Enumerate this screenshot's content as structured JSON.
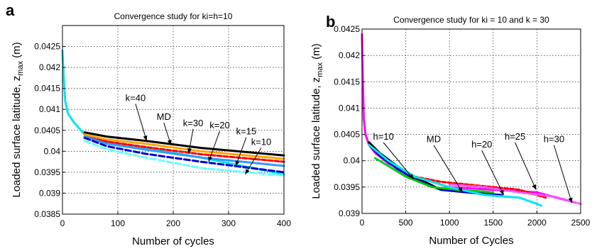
{
  "chart_data": [
    {
      "panel": "a",
      "type": "line",
      "title": "Convergence study for ki=h=10",
      "xlabel": "Number of cycles",
      "ylabel": "Loaded surface latitude, z",
      "ylabel_sub": "max",
      "ylabel_unit": " (m)",
      "xlim": [
        0,
        400
      ],
      "ylim": [
        0.0385,
        0.043
      ],
      "xticks": [
        0,
        100,
        200,
        300,
        400
      ],
      "yticks": [
        0.0385,
        0.039,
        0.0395,
        0.04,
        0.0405,
        0.041,
        0.0415,
        0.042,
        0.0425
      ],
      "ytick_labels": [
        "0.0385",
        "0.039",
        "0.0395",
        "0.04",
        "0.0405",
        "0.041",
        "0.0415",
        "0.042",
        "0.0425"
      ],
      "grid": true,
      "series": [
        {
          "color": "#00e5ee",
          "dash": "",
          "x": [
            0,
            2,
            5,
            10,
            20,
            40,
            80,
            150,
            250,
            400
          ],
          "y": [
            0.0424,
            0.0418,
            0.0412,
            0.0409,
            0.0407,
            0.0404,
            0.04023,
            0.04008,
            0.03985,
            0.03945
          ]
        },
        {
          "color": "#000000",
          "dash": "",
          "x": [
            40,
            80,
            150,
            250,
            400
          ],
          "y": [
            0.04045,
            0.04035,
            0.04025,
            0.04008,
            0.0399
          ]
        },
        {
          "color": "#ffa500",
          "dash": "",
          "x": [
            40,
            80,
            150,
            250,
            400
          ],
          "y": [
            0.0404,
            0.04028,
            0.04018,
            0.04,
            0.03982
          ]
        },
        {
          "color": "#ff0000",
          "dash": "6 3",
          "x": [
            40,
            80,
            150,
            250,
            400
          ],
          "y": [
            0.04035,
            0.04023,
            0.0401,
            0.03993,
            0.03975
          ]
        },
        {
          "color": "#3399ff",
          "dash": "",
          "x": [
            40,
            80,
            150,
            250,
            400
          ],
          "y": [
            0.04035,
            0.04018,
            0.04004,
            0.03985,
            0.03965
          ]
        },
        {
          "color": "#0000cc",
          "dash": "8 4",
          "x": [
            40,
            80,
            150,
            250,
            400
          ],
          "y": [
            0.04032,
            0.04012,
            0.03994,
            0.03975,
            0.0395
          ]
        },
        {
          "color": "#66ffff",
          "dash": "8 4",
          "x": [
            40,
            80,
            150,
            250,
            400
          ],
          "y": [
            0.04025,
            0.04005,
            0.03985,
            0.0396,
            0.03942
          ]
        }
      ],
      "annotations": [
        {
          "text": "k=40",
          "tx": 132,
          "ty": 0.0412,
          "ax": 152,
          "ay": 0.04025
        },
        {
          "text": "MD",
          "tx": 183,
          "ty": 0.04075,
          "ax": 196,
          "ay": 0.04015
        },
        {
          "text": "k=30",
          "tx": 236,
          "ty": 0.0406,
          "ax": 228,
          "ay": 0.03995
        },
        {
          "text": "k=20",
          "tx": 284,
          "ty": 0.04055,
          "ax": 264,
          "ay": 0.03975
        },
        {
          "text": "k=15",
          "tx": 332,
          "ty": 0.0404,
          "ax": 313,
          "ay": 0.03965
        },
        {
          "text": "k=10",
          "tx": 359,
          "ty": 0.04015,
          "ax": 330,
          "ay": 0.03945
        }
      ]
    },
    {
      "panel": "b",
      "type": "line",
      "title": "Convergence study for ki = 10 and k = 30",
      "xlabel": "Number of Cycles",
      "ylabel": "Loaded surface latitude, z",
      "ylabel_sub": "max",
      "ylabel_unit": " (m)",
      "xlim": [
        0,
        2500
      ],
      "ylim": [
        0.039,
        0.0425
      ],
      "xticks": [
        0,
        500,
        1000,
        1500,
        2000,
        2500
      ],
      "yticks": [
        0.039,
        0.0395,
        0.04,
        0.0405,
        0.041,
        0.0415,
        0.042,
        0.0425
      ],
      "ytick_labels": [
        "0.039",
        "0.0395",
        "0.04",
        "0.0405",
        "0.041",
        "0.0415",
        "0.042",
        "0.0425"
      ],
      "grid": true,
      "series": [
        {
          "color": "#ff00ff",
          "dash": "",
          "x": [
            0,
            10,
            20,
            40,
            80,
            150,
            300,
            600,
            1000,
            1500,
            2000,
            2450
          ],
          "y": [
            0.0424,
            0.0415,
            0.0408,
            0.0405,
            0.0403,
            0.04015,
            0.03995,
            0.0397,
            0.0395,
            0.03945,
            0.0394,
            0.0392
          ]
        },
        {
          "color": "#000000",
          "dash": "",
          "x": [
            80,
            200,
            400,
            600,
            900,
            1200,
            1500
          ],
          "y": [
            0.04035,
            0.04015,
            0.0399,
            0.0397,
            0.03945,
            0.0394,
            0.03935
          ]
        },
        {
          "color": "#0000cc",
          "dash": "",
          "x": [
            80,
            200,
            400,
            600,
            900,
            1200,
            1600
          ],
          "y": [
            0.0403,
            0.0401,
            0.03985,
            0.03965,
            0.03945,
            0.0394,
            0.03935
          ]
        },
        {
          "color": "#00cc00",
          "dash": "",
          "x": [
            150,
            300,
            500,
            800,
            1100,
            1500
          ],
          "y": [
            0.04005,
            0.0399,
            0.0397,
            0.0395,
            0.03945,
            0.0394
          ]
        },
        {
          "color": "#ff0000",
          "dash": "5 3",
          "x": [
            600,
            900,
            1200,
            1500,
            1800,
            2100
          ],
          "y": [
            0.0397,
            0.0396,
            0.03955,
            0.0395,
            0.03945,
            0.0393
          ]
        },
        {
          "color": "#00e5ee",
          "dash": "",
          "x": [
            80,
            300,
            600,
            1000,
            1400,
            1800,
            2050
          ],
          "y": [
            0.0403,
            0.04,
            0.0397,
            0.0395,
            0.03935,
            0.0393,
            0.03915
          ]
        },
        {
          "color": "#ff55ff",
          "dash": "5 3",
          "x": [
            1000,
            1400,
            1800,
            2200,
            2500
          ],
          "y": [
            0.03955,
            0.0395,
            0.0394,
            0.03932,
            0.03918
          ]
        }
      ],
      "annotations": [
        {
          "text": "h=10",
          "tx": 245,
          "ty": 0.0404,
          "ax": 590,
          "ay": 0.03965
        },
        {
          "text": "MD",
          "tx": 820,
          "ty": 0.04035,
          "ax": 1150,
          "ay": 0.0394
        },
        {
          "text": "h=20",
          "tx": 1370,
          "ty": 0.04025,
          "ax": 1620,
          "ay": 0.03935
        },
        {
          "text": "h=25",
          "tx": 1750,
          "ty": 0.0404,
          "ax": 1990,
          "ay": 0.03945
        },
        {
          "text": "h=30",
          "tx": 2195,
          "ty": 0.04035,
          "ax": 2400,
          "ay": 0.0392
        }
      ]
    }
  ]
}
